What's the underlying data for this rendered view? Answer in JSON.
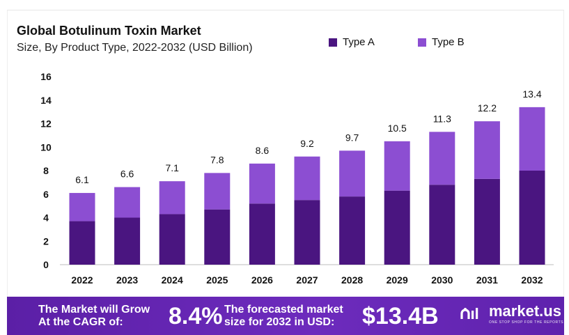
{
  "chart_data": {
    "type": "bar",
    "stacked": true,
    "title": "Global Botulinum Toxin Market",
    "subtitle": "Size, By Product Type, 2022-2032 (USD Billion)",
    "categories": [
      "2022",
      "2023",
      "2024",
      "2025",
      "2026",
      "2027",
      "2028",
      "2029",
      "2030",
      "2031",
      "2032"
    ],
    "series": [
      {
        "name": "Type A",
        "color": "#4a1580",
        "values": [
          3.7,
          4.0,
          4.3,
          4.7,
          5.2,
          5.5,
          5.8,
          6.3,
          6.8,
          7.3,
          8.0
        ]
      },
      {
        "name": "Type B",
        "color": "#8c4ed2",
        "values": [
          2.4,
          2.6,
          2.8,
          3.1,
          3.4,
          3.7,
          3.9,
          4.2,
          4.5,
          4.9,
          5.4
        ]
      }
    ],
    "totals": [
      "6.1",
      "6.6",
      "7.1",
      "7.8",
      "8.6",
      "9.2",
      "9.7",
      "10.5",
      "11.3",
      "12.2",
      "13.4"
    ],
    "ylim": [
      0,
      16
    ],
    "yticks": [
      "0",
      "2",
      "4",
      "6",
      "8",
      "10",
      "12",
      "14",
      "16"
    ],
    "legend": "top-center",
    "grid": false
  },
  "footer": {
    "cagr_label_line1": "The Market will Grow",
    "cagr_label_line2": "At the CAGR of:",
    "cagr_value": "8.4%",
    "forecast_label_line1": "The forecasted market",
    "forecast_label_line2": "size for 2032 in USD:",
    "forecast_value": "$13.4B",
    "brand_name": "market.us",
    "brand_tagline": "ONE STOP SHOP FOR THE REPORTS",
    "brand_icon": "market-us-logo-icon"
  }
}
